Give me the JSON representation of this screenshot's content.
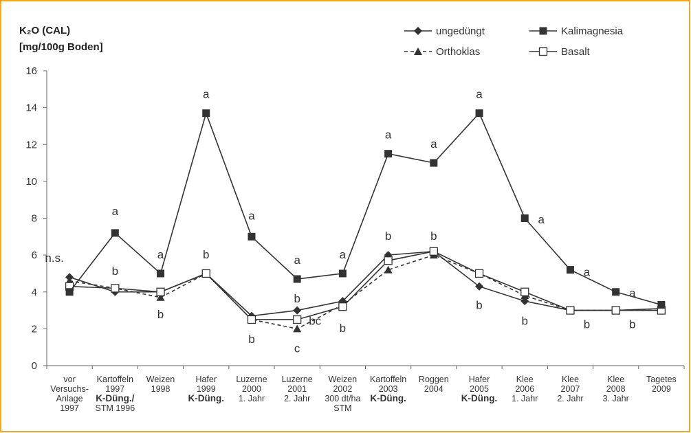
{
  "chart_data": {
    "type": "line",
    "ylabel_line1": "K₂O (CAL)",
    "ylabel_line2": "[mg/100g Boden]",
    "ylim": [
      0,
      16
    ],
    "yticks": [
      "0",
      "2",
      "4",
      "6",
      "8",
      "10",
      "12",
      "14",
      "16"
    ],
    "grid": false,
    "legend_position": "top-right",
    "categories": [
      {
        "lines": [
          "vor",
          "Versuchs-",
          "Anlage",
          "1997"
        ],
        "bold": []
      },
      {
        "lines": [
          "Kartoffeln",
          "1997",
          "K-Düng./",
          "STM 1996"
        ],
        "bold": [
          2
        ]
      },
      {
        "lines": [
          "Weizen",
          "1998"
        ],
        "bold": []
      },
      {
        "lines": [
          "Hafer",
          "1999",
          "K-Düng."
        ],
        "bold": [
          2
        ]
      },
      {
        "lines": [
          "Luzerne",
          "2000",
          "1. Jahr"
        ],
        "bold": []
      },
      {
        "lines": [
          "Luzerne",
          "2001",
          "2. Jahr"
        ],
        "bold": []
      },
      {
        "lines": [
          "Weizen",
          "2002",
          "300 dt/ha",
          "STM"
        ],
        "bold": []
      },
      {
        "lines": [
          "Kartoffeln",
          "2003",
          "K-Düng."
        ],
        "bold": [
          2
        ]
      },
      {
        "lines": [
          "Roggen",
          "2004"
        ],
        "bold": []
      },
      {
        "lines": [
          "Hafer",
          "2005",
          "K-Düng."
        ],
        "bold": [
          2
        ]
      },
      {
        "lines": [
          "Klee",
          "2006",
          "1. Jahr"
        ],
        "bold": []
      },
      {
        "lines": [
          "Klee",
          "2007",
          "2. Jahr"
        ],
        "bold": []
      },
      {
        "lines": [
          "Klee",
          "2008",
          "3. Jahr"
        ],
        "bold": []
      },
      {
        "lines": [
          "Tagetes",
          "2009"
        ],
        "bold": []
      }
    ],
    "series": [
      {
        "name": "ungedüngt",
        "marker": "diamond",
        "dash": false,
        "color": "#333333",
        "values": [
          4.8,
          4.0,
          4.0,
          5.0,
          2.7,
          3.0,
          3.5,
          6.0,
          6.2,
          4.3,
          3.5,
          3.0,
          3.0,
          3.1
        ]
      },
      {
        "name": "Kalimagnesia",
        "marker": "square-filled",
        "dash": false,
        "color": "#333333",
        "values": [
          4.0,
          7.2,
          5.0,
          13.7,
          7.0,
          4.7,
          5.0,
          11.5,
          11.0,
          13.7,
          8.0,
          5.2,
          4.0,
          3.3
        ]
      },
      {
        "name": "Orthoklas",
        "marker": "triangle",
        "dash": true,
        "color": "#333333",
        "values": [
          4.6,
          4.2,
          3.7,
          5.0,
          2.5,
          2.0,
          3.3,
          5.2,
          6.0,
          5.0,
          3.8,
          3.0,
          3.0,
          3.0
        ]
      },
      {
        "name": "Basalt",
        "marker": "square-open",
        "dash": false,
        "color": "#333333",
        "values": [
          4.3,
          4.2,
          4.0,
          5.0,
          2.5,
          2.5,
          3.2,
          5.7,
          6.2,
          5.0,
          4.0,
          3.0,
          3.0,
          3.0
        ]
      }
    ],
    "annotations": [
      {
        "text": "n.s.",
        "cat": 0,
        "y": 5.85,
        "dx": -22
      },
      {
        "text": "a",
        "cat": 1,
        "y": 8.4,
        "dx": 0
      },
      {
        "text": "b",
        "cat": 1,
        "y": 5.15,
        "dx": 0
      },
      {
        "text": "a",
        "cat": 2,
        "y": 6.05,
        "dx": 0
      },
      {
        "text": "b",
        "cat": 2,
        "y": 2.8,
        "dx": 0
      },
      {
        "text": "a",
        "cat": 3,
        "y": 14.75,
        "dx": 0
      },
      {
        "text": "b",
        "cat": 3,
        "y": 6.05,
        "dx": 0
      },
      {
        "text": "a",
        "cat": 4,
        "y": 8.15,
        "dx": 0
      },
      {
        "text": "b",
        "cat": 4,
        "y": 1.45,
        "dx": 0
      },
      {
        "text": "a",
        "cat": 5,
        "y": 5.75,
        "dx": 0
      },
      {
        "text": "b",
        "cat": 5,
        "y": 3.65,
        "dx": 0
      },
      {
        "text": "bc",
        "cat": 5,
        "y": 2.45,
        "dx": 26
      },
      {
        "text": "c",
        "cat": 5,
        "y": 0.95,
        "dx": 0
      },
      {
        "text": "a",
        "cat": 6,
        "y": 6.05,
        "dx": 0
      },
      {
        "text": "b",
        "cat": 6,
        "y": 2.05,
        "dx": 0
      },
      {
        "text": "a",
        "cat": 7,
        "y": 12.55,
        "dx": 0
      },
      {
        "text": "b",
        "cat": 7,
        "y": 7.05,
        "dx": 0
      },
      {
        "text": "a",
        "cat": 8,
        "y": 12.05,
        "dx": 0
      },
      {
        "text": "b",
        "cat": 8,
        "y": 7.05,
        "dx": 0
      },
      {
        "text": "a",
        "cat": 9,
        "y": 14.75,
        "dx": 0
      },
      {
        "text": "b",
        "cat": 9,
        "y": 3.3,
        "dx": 0
      },
      {
        "text": "a",
        "cat": 10,
        "y": 7.95,
        "dx": 24
      },
      {
        "text": "b",
        "cat": 10,
        "y": 2.45,
        "dx": 0
      },
      {
        "text": "a",
        "cat": 11,
        "y": 5.1,
        "dx": 24
      },
      {
        "text": "b",
        "cat": 11,
        "y": 2.25,
        "dx": 24
      },
      {
        "text": "a",
        "cat": 12,
        "y": 3.95,
        "dx": 24
      },
      {
        "text": "b",
        "cat": 12,
        "y": 2.25,
        "dx": 24
      }
    ]
  },
  "frame_color": "#f5a623"
}
